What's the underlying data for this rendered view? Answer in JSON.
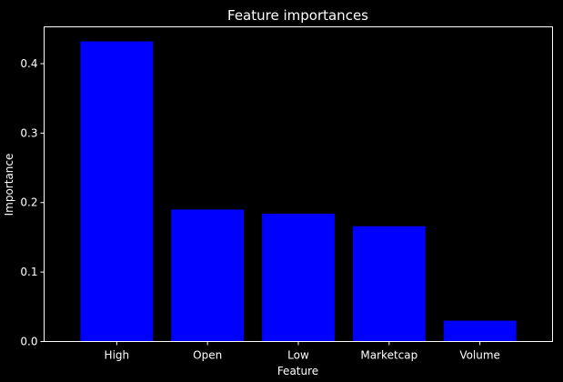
{
  "chart_data": {
    "type": "bar",
    "title": "Feature importances",
    "xlabel": "Feature",
    "ylabel": "Importance",
    "categories": [
      "High",
      "Open",
      "Low",
      "Marketcap",
      "Volume"
    ],
    "values": [
      0.432,
      0.19,
      0.184,
      0.166,
      0.03
    ],
    "ylim": [
      0,
      0.453
    ],
    "yticks": [
      "0.0",
      "0.1",
      "0.2",
      "0.3",
      "0.4"
    ],
    "grid": false,
    "legend": "none",
    "colors": {
      "background": "#000000",
      "bar": "#0000ff",
      "axes": "#ffffff",
      "text": "#ffffff"
    }
  }
}
